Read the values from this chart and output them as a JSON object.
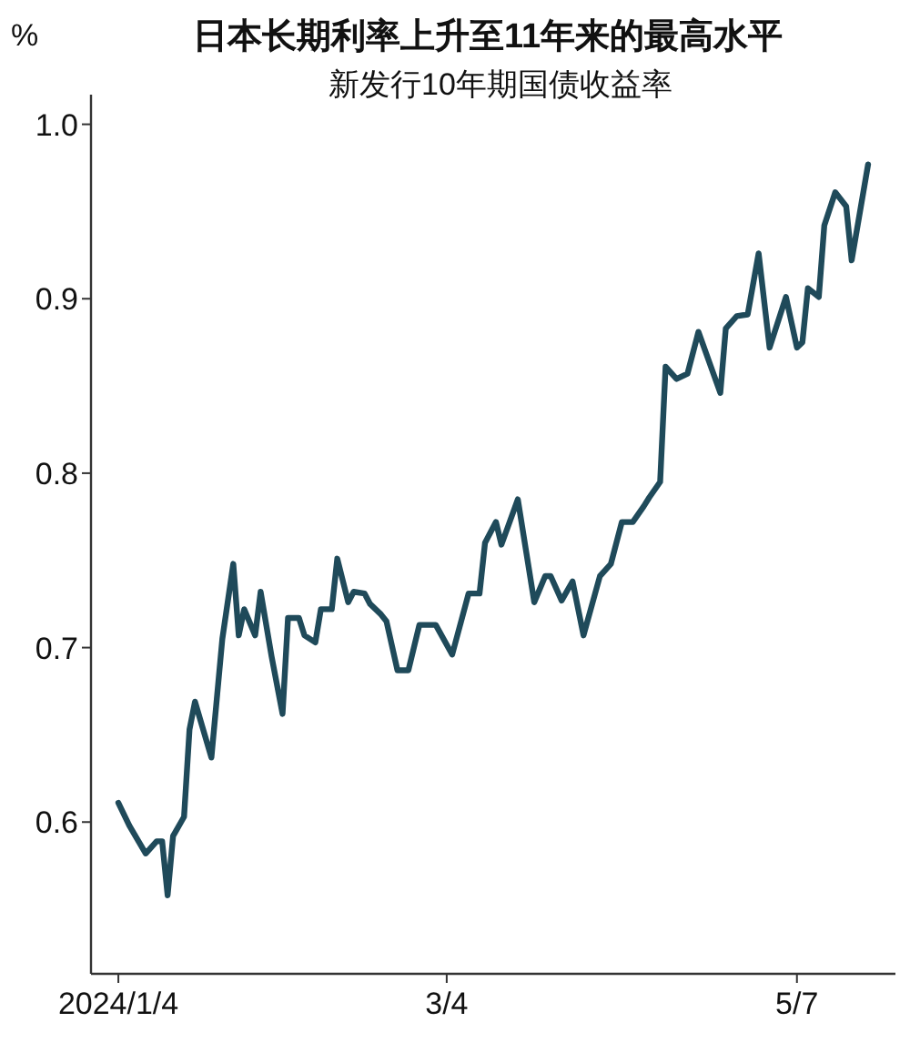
{
  "chart_data": {
    "type": "line",
    "title": "日本长期利率上升至11年来的最高水平",
    "subtitle": "新发行10年期国债收益率",
    "ylabel": "%",
    "x": [
      "2024-01-04",
      "2024-01-06",
      "2024-01-09",
      "2024-01-11",
      "2024-01-12",
      "2024-01-13",
      "2024-01-14",
      "2024-01-16",
      "2024-01-17",
      "2024-01-18",
      "2024-01-21",
      "2024-01-23",
      "2024-01-25",
      "2024-01-26",
      "2024-01-27",
      "2024-01-29",
      "2024-01-30",
      "2024-02-01",
      "2024-02-03",
      "2024-02-04",
      "2024-02-06",
      "2024-02-07",
      "2024-02-09",
      "2024-02-10",
      "2024-02-12",
      "2024-02-13",
      "2024-02-15",
      "2024-02-16",
      "2024-02-18",
      "2024-02-19",
      "2024-02-21",
      "2024-02-22",
      "2024-02-24",
      "2024-02-26",
      "2024-02-28",
      "2024-03-02",
      "2024-03-05",
      "2024-03-08",
      "2024-03-10",
      "2024-03-11",
      "2024-03-13",
      "2024-03-14",
      "2024-03-17",
      "2024-03-20",
      "2024-03-22",
      "2024-03-23",
      "2024-03-25",
      "2024-03-27",
      "2024-03-29",
      "2024-04-01",
      "2024-04-03",
      "2024-04-05",
      "2024-04-07",
      "2024-04-09",
      "2024-04-10",
      "2024-04-12",
      "2024-04-13",
      "2024-04-15",
      "2024-04-17",
      "2024-04-19",
      "2024-04-23",
      "2024-04-24",
      "2024-04-26",
      "2024-04-28",
      "2024-04-30",
      "2024-05-02",
      "2024-05-05",
      "2024-05-07",
      "2024-05-08",
      "2024-05-09",
      "2024-05-11",
      "2024-05-12",
      "2024-05-14",
      "2024-05-16",
      "2024-05-17",
      "2024-05-20"
    ],
    "series": [
      {
        "color": "#1f4a5a",
        "values": [
          0.611,
          0.598,
          0.582,
          0.589,
          0.589,
          0.558,
          0.592,
          0.603,
          0.653,
          0.669,
          0.637,
          0.705,
          0.748,
          0.707,
          0.722,
          0.707,
          0.732,
          0.695,
          0.662,
          0.717,
          0.717,
          0.707,
          0.703,
          0.722,
          0.722,
          0.751,
          0.726,
          0.732,
          0.731,
          0.725,
          0.719,
          0.715,
          0.687,
          0.687,
          0.713,
          0.713,
          0.696,
          0.731,
          0.731,
          0.76,
          0.772,
          0.759,
          0.785,
          0.726,
          0.741,
          0.741,
          0.727,
          0.738,
          0.707,
          0.741,
          0.748,
          0.772,
          0.772,
          0.781,
          0.786,
          0.795,
          0.861,
          0.854,
          0.857,
          0.881,
          0.846,
          0.883,
          0.89,
          0.891,
          0.926,
          0.872,
          0.901,
          0.872,
          0.875,
          0.906,
          0.901,
          0.942,
          0.961,
          0.953,
          0.922,
          0.977
        ]
      }
    ],
    "xlim": [
      "2023-12-30",
      "2024-05-25"
    ],
    "xticks": [
      {
        "value": "2024-01-04",
        "label": "2024/1/4"
      },
      {
        "value": "2024-03-04",
        "label": "3/4"
      },
      {
        "value": "2024-05-07",
        "label": "5/7"
      }
    ],
    "ylim": [
      0.513,
      1.017
    ],
    "yticks": [
      0.6,
      0.7,
      0.8,
      0.9,
      {
        "value": 1,
        "label": "1.0"
      }
    ],
    "grid": false,
    "marker": "none",
    "line_style": "solid"
  }
}
